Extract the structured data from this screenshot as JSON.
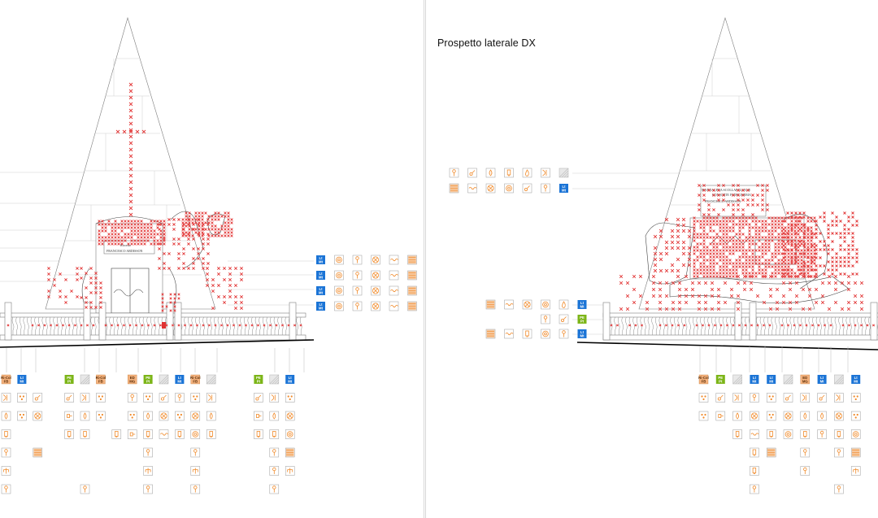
{
  "title": "Prospetto laterale DX",
  "plaque_left": {
    "line1": "FRANCESCO ARDISSON"
  },
  "plaque_right": {
    "line1": "MADDALENA SCOLLAPALCANE",
    "line2": "FRANCESCO ARDISSON"
  },
  "colors": {
    "damage_mark": "#e33b3b",
    "blue_tag": "#1b74d6",
    "green_tag": "#7cb518",
    "orange_tag": "#f4b27e",
    "orange_icon": "#f08a2a",
    "grey_tag": "#bdbdbd",
    "ground_line": "#000000"
  },
  "legend_left_side": [
    [
      "blue:Lt|Mt",
      "o:ring",
      "o:key",
      "o:target",
      "o:wave",
      "o:hatch"
    ],
    [
      "blue:Lt|Mt",
      "o:ring",
      "o:key",
      "o:target",
      "o:wave",
      "o:hatch"
    ],
    [
      "blue:Lt|Mt",
      "o:ring",
      "o:key",
      "o:target",
      "o:wave",
      "o:hatch"
    ],
    [
      "blue:Lt|Mt",
      "o:ring",
      "o:key",
      "o:target",
      "o:wave",
      "o:hatch"
    ]
  ],
  "legend_right_top": [
    [
      "o:key",
      "o:pin",
      "o:drop",
      "o:lamp",
      "o:flame",
      "o:arc",
      "g:grid"
    ],
    [
      "o:hatch",
      "o:wave",
      "o:target",
      "o:ring",
      "o:pin",
      "o:key",
      "blue:Lt|Mt"
    ]
  ],
  "legend_right_mid": [
    [
      "o:hatch",
      "o:wave",
      "o:target",
      "o:ring",
      "o:flame",
      "blue:Lt|Mt"
    ],
    [
      "",
      "",
      "",
      "o:key",
      "o:pin",
      "green:PE|Pt"
    ],
    [
      "o:hatch",
      "o:wave",
      "o:lamp",
      "o:ring",
      "o:key",
      "blue:Lt|Mt"
    ]
  ],
  "legend_left_bottom": [
    [
      "orange:Ri-Col|FB",
      "blue:Lt|Mt",
      "",
      "",
      "green:PE|Pt",
      "g:grid",
      "orange:Ri-Col|FB",
      "",
      "orange:ED|MG",
      "green:PE|Pt",
      "g:grid",
      "blue:Lt|Mt",
      "orange:Ri-Col|FB",
      "g:grid",
      "",
      "",
      "green:PE|Pt",
      "g:grid",
      "blue:Lt|Mt"
    ],
    [
      "o:arc",
      "o:dots",
      "o:pin",
      "",
      "o:pin",
      "o:arc",
      "o:dots",
      "",
      "o:key",
      "o:dots",
      "o:pin",
      "o:key",
      "o:dots",
      "o:arc",
      "",
      "",
      "o:pin",
      "o:arc",
      "o:dots"
    ],
    [
      "o:drop",
      "o:dots",
      "o:target",
      "",
      "o:plug",
      "o:drop",
      "o:dots",
      "",
      "o:dots",
      "o:drop",
      "o:target",
      "o:dots",
      "o:target",
      "o:drop",
      "",
      "",
      "o:plug",
      "o:drop",
      "o:target"
    ],
    [
      "o:lamp",
      "",
      "",
      "",
      "o:lamp",
      "o:lamp",
      "",
      "o:lamp",
      "o:plug",
      "o:lamp",
      "o:wave",
      "o:lamp",
      "o:ring",
      "o:lamp",
      "",
      "",
      "o:lamp",
      "o:lamp",
      "o:ring"
    ],
    [
      "o:key",
      "",
      "o:hatch",
      "",
      "",
      "",
      "",
      "",
      "",
      "o:key",
      "",
      "",
      "o:key",
      "",
      "",
      "",
      "",
      "o:key",
      "o:hatch"
    ],
    [
      "o:fork",
      "",
      "",
      "",
      "",
      "",
      "",
      "",
      "",
      "o:fork",
      "",
      "",
      "o:fork",
      "",
      "",
      "",
      "",
      "o:key",
      "o:fork"
    ],
    [
      "o:key",
      "",
      "",
      "",
      "",
      "o:key",
      "",
      "",
      "",
      "o:key",
      "",
      "",
      "o:key",
      "",
      "",
      "",
      "",
      "o:key",
      ""
    ]
  ],
  "legend_right_bottom": [
    [
      "orange:Ri-Col|FB",
      "green:PE|Pt",
      "g:grid",
      "blue:Lt|Mt",
      "blue:Lt|Mt",
      "g:grid",
      "orange:ED|MG",
      "blue:Lt|Mt",
      "g:grid",
      "blue:Lt|Mt"
    ],
    [
      "o:dots",
      "o:pin",
      "o:arc",
      "o:key",
      "o:dots",
      "o:pin",
      "o:arc",
      "o:pin",
      "o:arc",
      "o:dots"
    ],
    [
      "o:dots",
      "o:plug",
      "o:drop",
      "o:target",
      "o:dots",
      "o:target",
      "o:drop",
      "o:drop",
      "o:target",
      "o:dots"
    ],
    [
      "",
      "",
      "o:lamp",
      "o:wave",
      "o:lamp",
      "o:ring",
      "o:lamp",
      "o:key",
      "o:lamp",
      "o:ring"
    ],
    [
      "",
      "",
      "",
      "o:lamp",
      "o:hatch",
      "",
      "o:key",
      "",
      "o:key",
      "o:hatch"
    ],
    [
      "",
      "",
      "",
      "o:lamp",
      "",
      "",
      "o:key",
      "",
      "",
      "o:fork"
    ],
    [
      "",
      "",
      "",
      "o:key",
      "",
      "",
      "",
      "",
      "o:key",
      ""
    ]
  ]
}
